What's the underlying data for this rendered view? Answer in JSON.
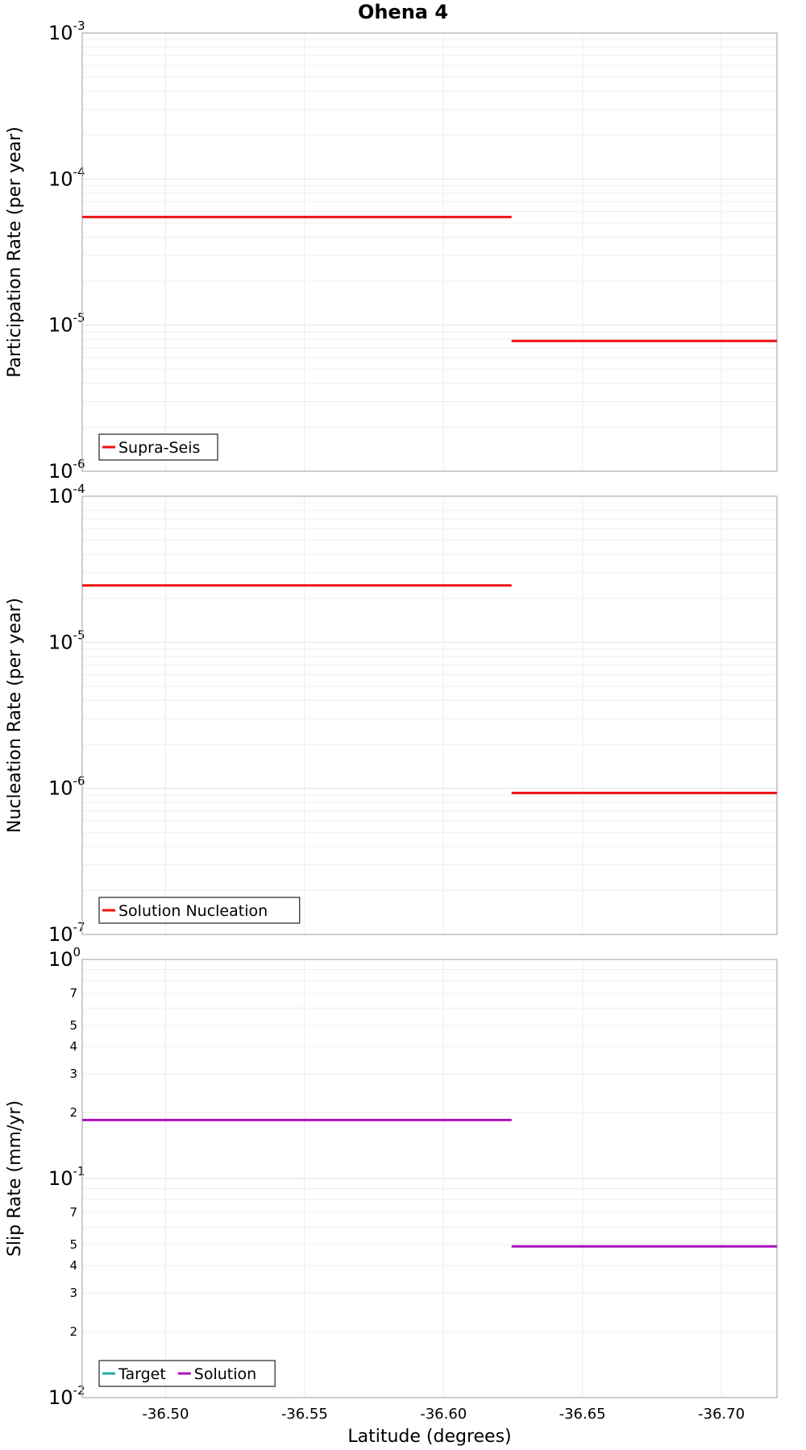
{
  "chart_data": {
    "type": "line",
    "title": "Ohena 4",
    "xlabel": "Latitude (degrees)",
    "xlim": [
      -36.47,
      -36.72
    ],
    "x_ticks": [
      "-36.50",
      "-36.55",
      "-36.60",
      "-36.65",
      "-36.70"
    ],
    "x_tick_values": [
      -36.5,
      -36.55,
      -36.6,
      -36.65,
      -36.7
    ],
    "panels": [
      {
        "ylabel": "Participation Rate (per year)",
        "yscale": "log",
        "ylim_exp": [
          -6,
          -3
        ],
        "minor_tick_labels": [],
        "legend": {
          "position": "bottom-left",
          "entries": [
            {
              "name": "Supra-Seis",
              "color": "#ee1111"
            }
          ]
        },
        "series": [
          {
            "name": "Supra-Seis",
            "color": "#ee1111",
            "segments": [
              {
                "x0": -36.47,
                "x1": -36.6245,
                "y": 5.5e-05
              },
              {
                "x0": -36.6245,
                "x1": -36.72,
                "y": 7.8e-06
              }
            ]
          }
        ]
      },
      {
        "ylabel": "Nucleation Rate (per year)",
        "yscale": "log",
        "ylim_exp": [
          -7,
          -4
        ],
        "minor_tick_labels": [],
        "legend": {
          "position": "bottom-left",
          "entries": [
            {
              "name": "Solution Nucleation",
              "color": "#ee1111"
            }
          ]
        },
        "series": [
          {
            "name": "Solution Nucleation",
            "color": "#ee1111",
            "segments": [
              {
                "x0": -36.47,
                "x1": -36.6245,
                "y": 2.45e-05
              },
              {
                "x0": -36.6245,
                "x1": -36.72,
                "y": 9.3e-07
              }
            ]
          }
        ]
      },
      {
        "ylabel": "Slip Rate (mm/yr)",
        "yscale": "log",
        "ylim_exp": [
          -2,
          0
        ],
        "minor_tick_labels": [
          2,
          3,
          4,
          5,
          7
        ],
        "legend": {
          "position": "bottom-left",
          "entries": [
            {
              "name": "Target",
              "color": "#22aaaa"
            },
            {
              "name": "Solution",
              "color": "#aa11bb"
            }
          ]
        },
        "series": [
          {
            "name": "Solution",
            "color": "#aa11bb",
            "segments": [
              {
                "x0": -36.47,
                "x1": -36.6245,
                "y": 0.185
              },
              {
                "x0": -36.6245,
                "x1": -36.72,
                "y": 0.049
              }
            ]
          }
        ]
      }
    ]
  }
}
